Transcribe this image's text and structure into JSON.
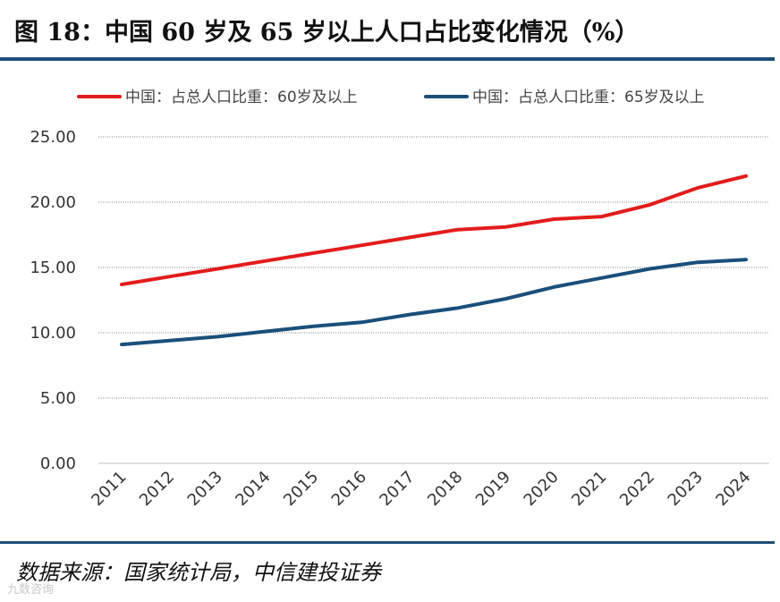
{
  "title": "图 18：中国 60 岁及 65 岁以上人口占比变化情况（%）",
  "source": "数据来源：国家统计局，中信建投证券",
  "watermark": "九数咨询",
  "colors": {
    "series60": "#e31c1c",
    "series65": "#1a4f7a",
    "rule": "#1f4e79"
  },
  "chart_data": {
    "type": "line",
    "title": "",
    "xlabel": "",
    "ylabel": "",
    "ylim": [
      0,
      25
    ],
    "yticks": [
      "0.00",
      "5.00",
      "10.00",
      "15.00",
      "20.00",
      "25.00"
    ],
    "grid": true,
    "legend_position": "top",
    "categories": [
      "2011",
      "2012",
      "2013",
      "2014",
      "2015",
      "2016",
      "2017",
      "2018",
      "2019",
      "2020",
      "2021",
      "2022",
      "2023",
      "2024"
    ],
    "series": [
      {
        "name": "中国：占总人口比重：60岁及以上",
        "color": "#e31c1c",
        "values": [
          13.7,
          14.3,
          14.9,
          15.5,
          16.1,
          16.7,
          17.3,
          17.9,
          18.1,
          18.7,
          18.9,
          19.8,
          21.1,
          22.0
        ]
      },
      {
        "name": "中国：占总人口比重：65岁及以上",
        "color": "#1a4f7a",
        "values": [
          9.1,
          9.4,
          9.7,
          10.1,
          10.5,
          10.8,
          11.4,
          11.9,
          12.6,
          13.5,
          14.2,
          14.9,
          15.4,
          15.6
        ]
      }
    ]
  }
}
